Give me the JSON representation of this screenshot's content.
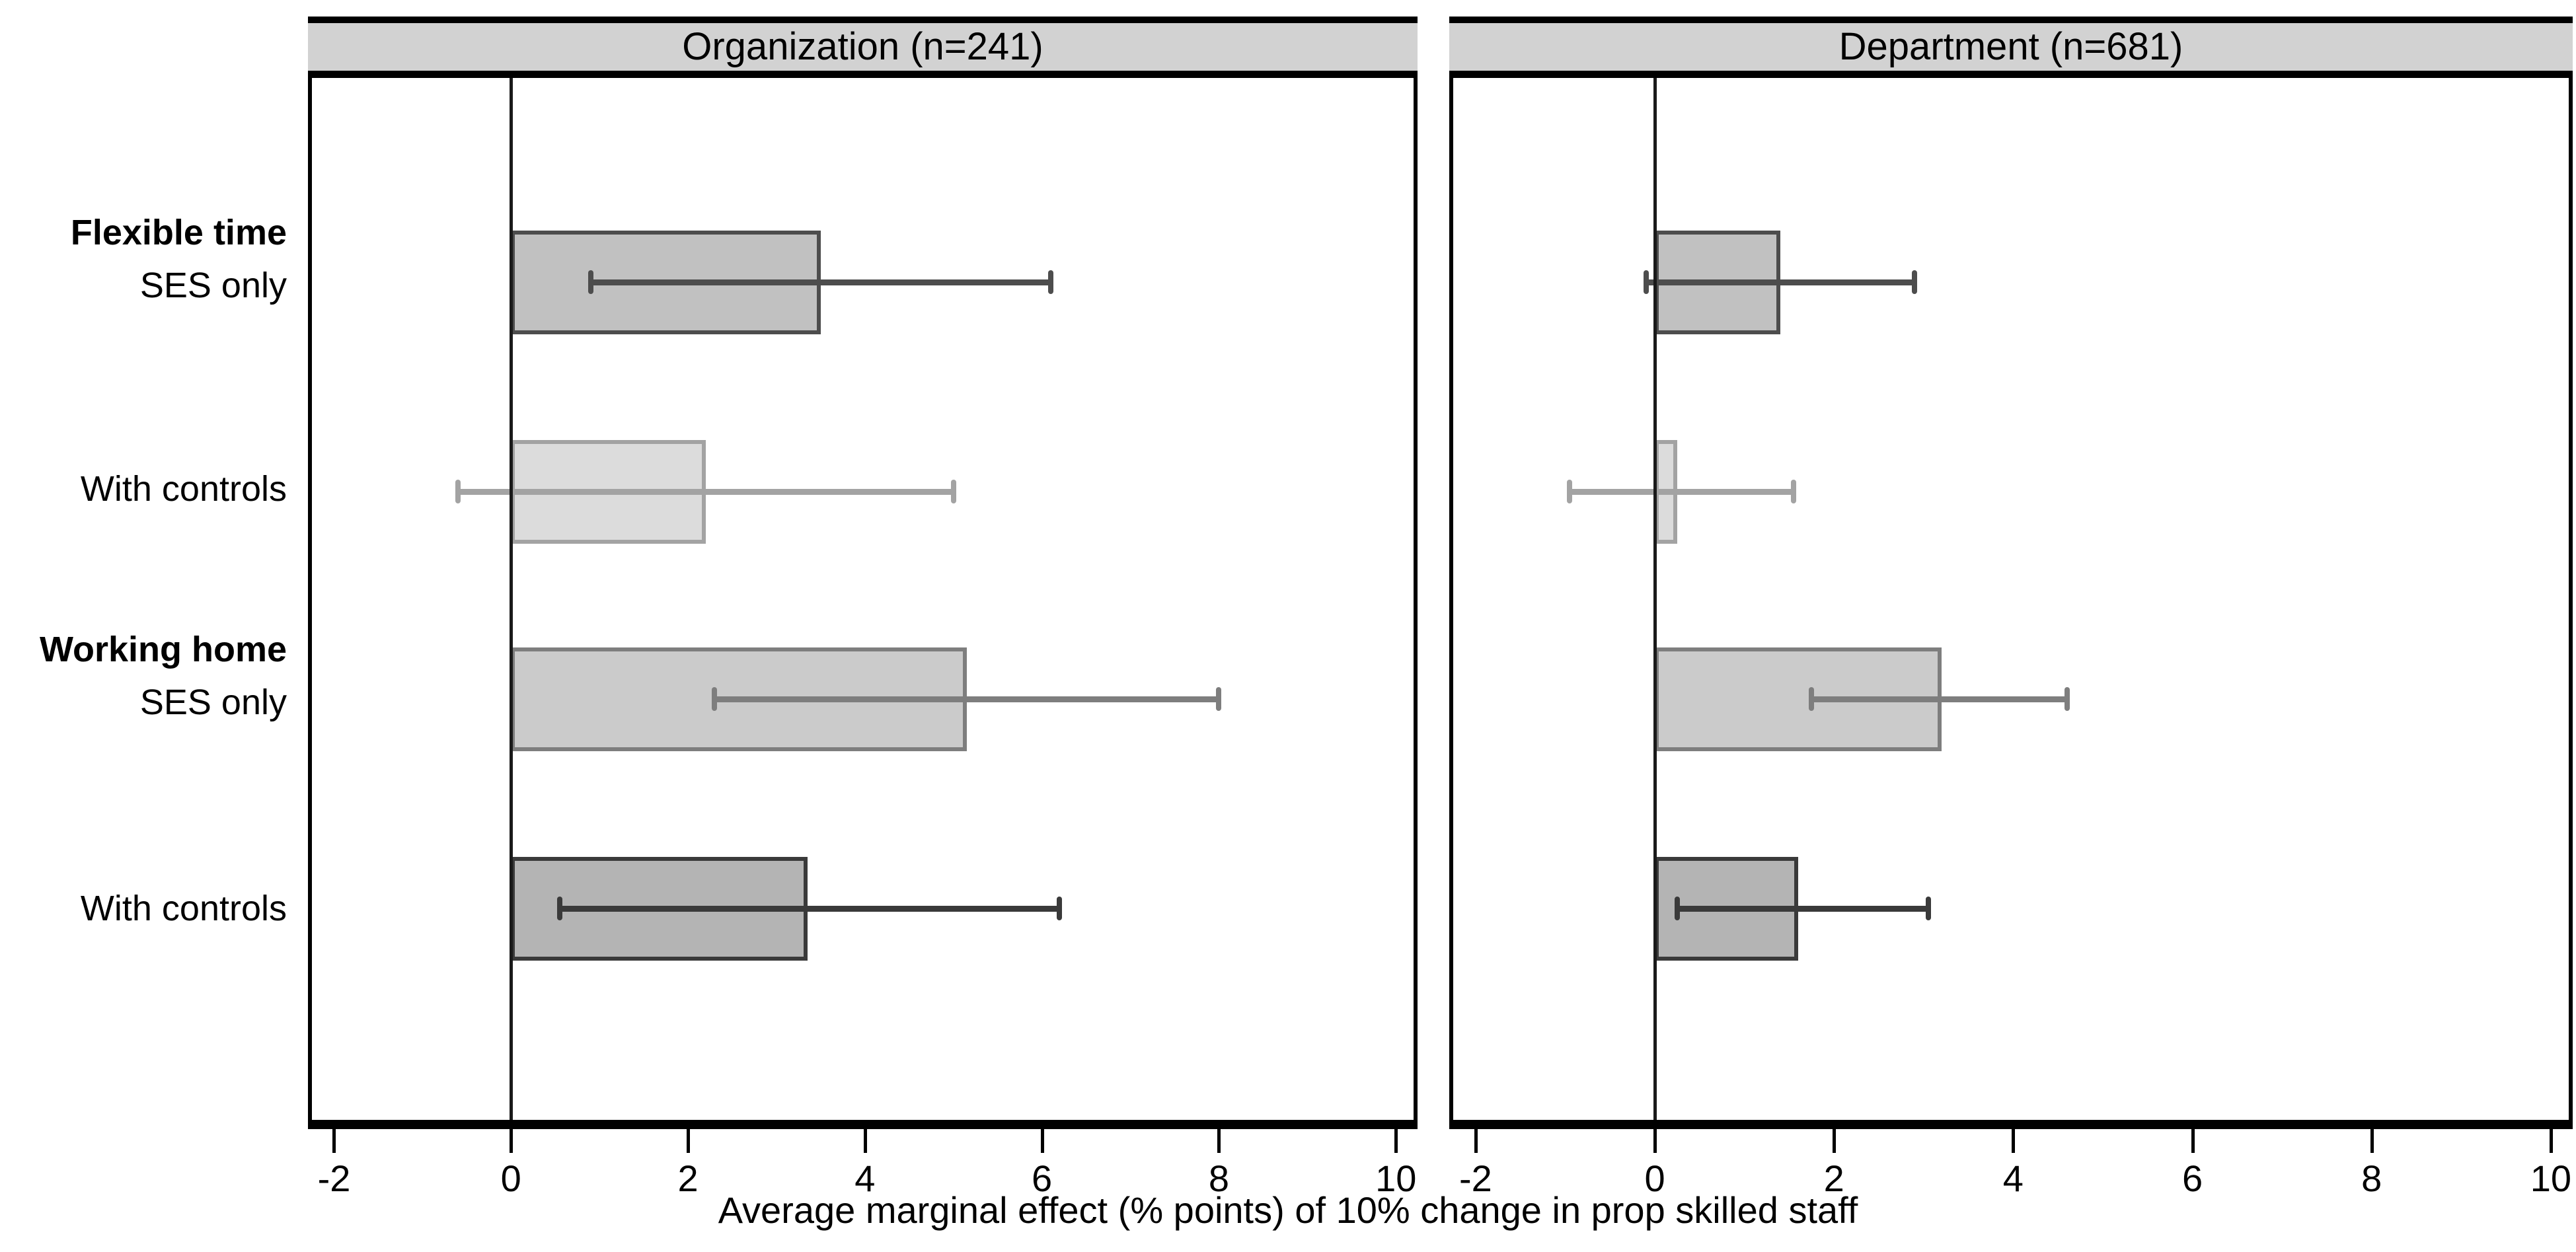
{
  "chart_data": {
    "type": "bar",
    "orientation": "horizontal",
    "title": "",
    "xlabel": "Average marginal effect (% points) of 10% change in prop skilled staff",
    "xlim": [
      -2.25,
      10.2
    ],
    "xticks": [
      -2,
      0,
      2,
      4,
      6,
      8,
      10
    ],
    "grid": false,
    "legend": "none",
    "header_bg": "#d2d2d2",
    "zero_line_color": "#1a1a1a",
    "row_ids": [
      "flexible-time-ses-only",
      "flexible-time-with-controls",
      "working-home-ses-only",
      "working-home-with-controls"
    ],
    "row_labels": [
      {
        "group": "Flexible time",
        "sub": "SES only"
      },
      {
        "group": "",
        "sub": "With controls"
      },
      {
        "group": "Working home",
        "sub": "SES only"
      },
      {
        "group": "",
        "sub": "With controls"
      }
    ],
    "row_styles": [
      {
        "fill": "#c1c1c1",
        "stroke": "#4d4d4d"
      },
      {
        "fill": "#dcdcdc",
        "stroke": "#a3a3a3"
      },
      {
        "fill": "#cbcbcb",
        "stroke": "#7e7e7e"
      },
      {
        "fill": "#b4b4b4",
        "stroke": "#3a3a3a"
      }
    ],
    "panels": [
      {
        "title": "Organization (n=241)",
        "estimates": [
          3.5,
          2.2,
          5.15,
          3.35
        ],
        "ci_low": [
          0.9,
          -0.6,
          2.3,
          0.55
        ],
        "ci_high": [
          6.1,
          5.0,
          8.0,
          6.2
        ]
      },
      {
        "title": "Department (n=681)",
        "estimates": [
          1.4,
          0.25,
          3.2,
          1.6
        ],
        "ci_low": [
          -0.1,
          -0.95,
          1.75,
          0.25
        ],
        "ci_high": [
          2.9,
          1.55,
          4.6,
          3.05
        ]
      }
    ]
  }
}
